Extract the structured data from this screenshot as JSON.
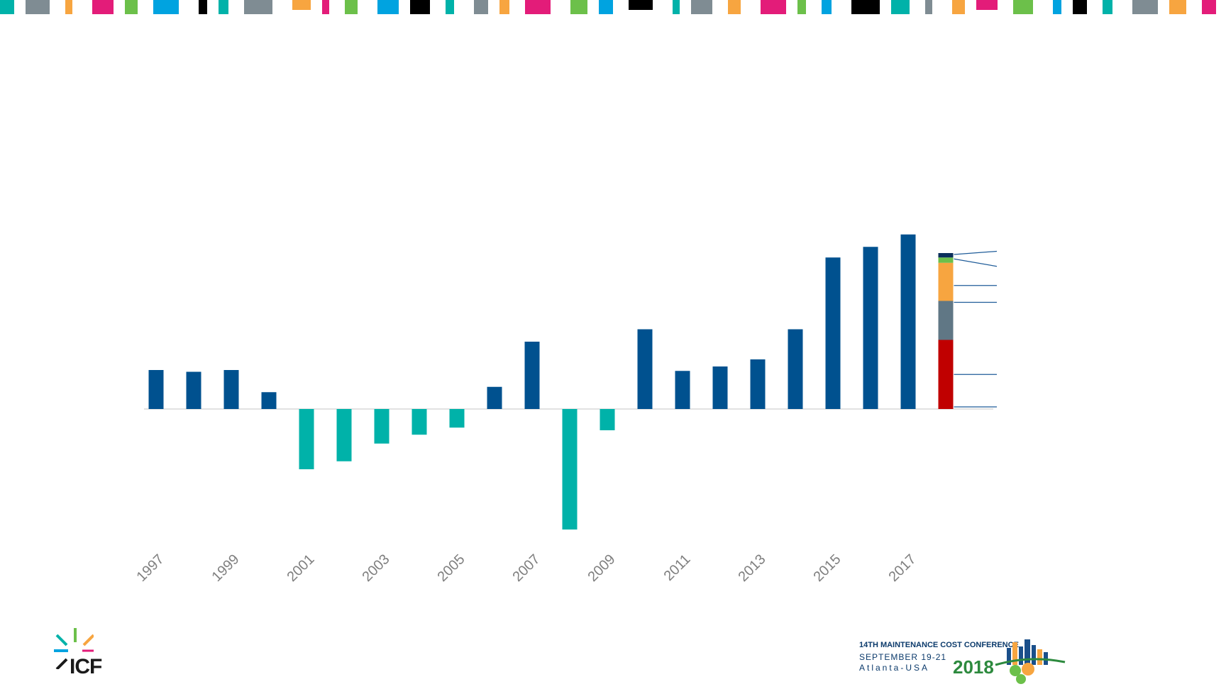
{
  "colors": {
    "positive": "#00518f",
    "negative": "#00b2a9",
    "baseline": "#d9d9d9",
    "tick_label": "#7f7f7f",
    "stack": [
      "#c00000",
      "#607785",
      "#f7a540",
      "#6cc04a",
      "#0b2f5b"
    ],
    "leader_line": "#1f5c99"
  },
  "chart_data": {
    "type": "bar",
    "x": [
      1997,
      1998,
      1999,
      2000,
      2001,
      2002,
      2003,
      2004,
      2005,
      2006,
      2007,
      2008,
      2009,
      2010,
      2011,
      2012,
      2013,
      2014,
      2015,
      2016,
      2017
    ],
    "values": [
      22,
      21,
      22,
      9.5,
      -34,
      -29.5,
      -19.5,
      -14.5,
      -10.5,
      12.5,
      38,
      -68,
      -12,
      45,
      21.5,
      24,
      28,
      45,
      85.5,
      91.5,
      98.5
    ],
    "x_tick_labels": [
      "1997",
      "1999",
      "2001",
      "2003",
      "2005",
      "2007",
      "2009",
      "2011",
      "2013",
      "2015",
      "2017"
    ],
    "stacked_bar": {
      "segments": [
        39,
        22,
        21.5,
        3,
        2.5
      ]
    },
    "ylim": [
      -90,
      115
    ],
    "grid": false,
    "legend": "none",
    "title": "",
    "xlabel": "",
    "ylabel": ""
  },
  "logos": {
    "left": {
      "brand": "ICF"
    },
    "right": {
      "line1": "14TH MAINTENANCE COST CONFERENCE",
      "line2": "SEPTEMBER 19-21",
      "line3": "Atlanta-USA",
      "year": "2018"
    }
  }
}
